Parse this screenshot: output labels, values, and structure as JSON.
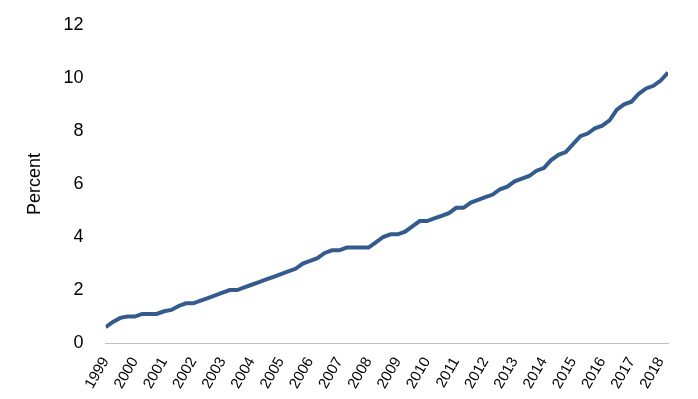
{
  "chart_data": {
    "type": "line",
    "y_label": "Percent",
    "categories": [
      "1999",
      null,
      null,
      null,
      "2000",
      null,
      null,
      null,
      "2001",
      null,
      null,
      null,
      "2002",
      null,
      null,
      null,
      "2003",
      null,
      null,
      null,
      "2004",
      null,
      null,
      null,
      "2005",
      null,
      null,
      null,
      "2006",
      null,
      null,
      null,
      "2007",
      null,
      null,
      null,
      "2008",
      null,
      null,
      null,
      "2009",
      null,
      null,
      null,
      "2010",
      null,
      null,
      null,
      "2011",
      null,
      null,
      null,
      "2012",
      null,
      null,
      null,
      "2013",
      null,
      null,
      null,
      "2014",
      null,
      null,
      null,
      "2015",
      null,
      null,
      null,
      "2016",
      null,
      null,
      null,
      "2017",
      null,
      null,
      null,
      "2018",
      null
    ],
    "values": [
      0.6,
      0.8,
      0.95,
      1.0,
      1.0,
      1.1,
      1.1,
      1.1,
      1.2,
      1.25,
      1.4,
      1.5,
      1.5,
      1.6,
      1.7,
      1.8,
      1.9,
      2.0,
      2.0,
      2.1,
      2.2,
      2.3,
      2.4,
      2.5,
      2.6,
      2.7,
      2.8,
      3.0,
      3.1,
      3.2,
      3.4,
      3.5,
      3.5,
      3.6,
      3.6,
      3.6,
      3.6,
      3.8,
      4.0,
      4.1,
      4.1,
      4.2,
      4.4,
      4.6,
      4.6,
      4.7,
      4.8,
      4.9,
      5.1,
      5.1,
      5.3,
      5.4,
      5.5,
      5.6,
      5.8,
      5.9,
      6.1,
      6.2,
      6.3,
      6.5,
      6.6,
      6.9,
      7.1,
      7.2,
      7.5,
      7.8,
      7.9,
      8.1,
      8.2,
      8.4,
      8.8,
      9.0,
      9.1,
      9.4,
      9.6,
      9.7,
      9.9,
      10.2
    ],
    "color": "#335b8e",
    "ylim": [
      0,
      12
    ],
    "yticks": [
      0,
      2,
      4,
      6,
      8,
      10,
      12
    ],
    "grid": false
  }
}
